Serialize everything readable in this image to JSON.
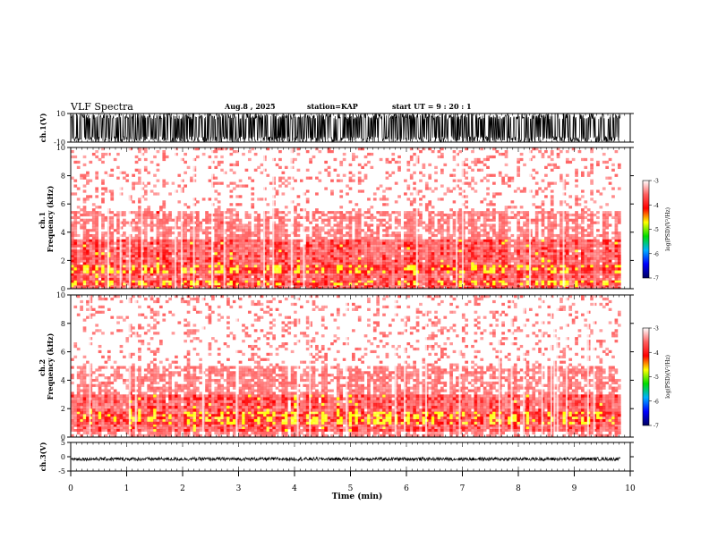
{
  "header": {
    "title": "VLF Spectra",
    "date": "Aug.8 , 2025",
    "station": "station=KAP",
    "start_ut": "start UT = 9 : 20 : 1"
  },
  "colors": {
    "spectrum_palette": [
      "#ffffff",
      "#ff6060",
      "#ff0000",
      "#ffff00",
      "#00dd00",
      "#00b0ff",
      "#0000ff",
      "#000060"
    ],
    "ink": "#000000"
  },
  "chart_data": [
    {
      "type": "line",
      "name": "ch1-waveform",
      "ylabel": "ch.1(V)",
      "ylim": [
        -10,
        10
      ],
      "y_ticks": [
        "10",
        "-10"
      ],
      "series": [
        {
          "name": "ch.1",
          "amplitude_range": [
            -10,
            10
          ],
          "duration_min": 9.83
        }
      ]
    },
    {
      "type": "heatmap",
      "name": "ch1-spectrogram",
      "ylabel": "ch.1\nFrequency (kHz)",
      "ylim": [
        0,
        10
      ],
      "y_ticks": [
        "0",
        "2",
        "4",
        "6",
        "8",
        "10"
      ],
      "bands_khz": [
        {
          "range": [
            0.0,
            0.25
          ],
          "level": "medium"
        },
        {
          "range": [
            0.25,
            0.6
          ],
          "level": "strong"
        },
        {
          "range": [
            0.6,
            1.1
          ],
          "level": "medium"
        },
        {
          "range": [
            1.1,
            1.7
          ],
          "level": "strong"
        },
        {
          "range": [
            1.7,
            2.4
          ],
          "level": "medium"
        },
        {
          "range": [
            2.4,
            3.5
          ],
          "level": "medium"
        },
        {
          "range": [
            3.5,
            5.5
          ],
          "level": "weak"
        },
        {
          "range": [
            5.5,
            10.0
          ],
          "level": "faint"
        }
      ],
      "colorbar": {
        "label": "log(PSD)(V²/Hz)",
        "range": [
          -7,
          -3
        ],
        "ticks": [
          "-3",
          "-4",
          "-5",
          "-6",
          "-7"
        ]
      }
    },
    {
      "type": "heatmap",
      "name": "ch2-spectrogram",
      "ylabel": "ch.2\nFrequency (kHz)",
      "ylim": [
        0,
        10
      ],
      "y_ticks": [
        "0",
        "2",
        "4",
        "6",
        "8",
        "10"
      ],
      "bands_khz": [
        {
          "range": [
            0.0,
            0.4
          ],
          "level": "weak"
        },
        {
          "range": [
            0.4,
            0.9
          ],
          "level": "medium"
        },
        {
          "range": [
            0.9,
            1.8
          ],
          "level": "strong"
        },
        {
          "range": [
            1.8,
            3.0
          ],
          "level": "medium"
        },
        {
          "range": [
            3.0,
            5.0
          ],
          "level": "weak"
        },
        {
          "range": [
            5.0,
            10.0
          ],
          "level": "faint"
        }
      ],
      "colorbar": {
        "label": "log(PSD)(V²/Hz)",
        "range": [
          -7,
          -3
        ],
        "ticks": [
          "-3",
          "-4",
          "-5",
          "-6",
          "-7"
        ]
      }
    },
    {
      "type": "line",
      "name": "ch3-waveform",
      "ylabel": "ch.3(V)",
      "ylim": [
        -5,
        5
      ],
      "y_ticks": [
        "5",
        "0",
        "-5"
      ],
      "series": [
        {
          "name": "ch.3",
          "amplitude_range": [
            -0.6,
            0.6
          ],
          "offset": -0.8,
          "duration_min": 9.83
        }
      ]
    }
  ],
  "x_axis": {
    "label": "Time (min)",
    "range": [
      0,
      10
    ],
    "ticks": [
      "0",
      "1",
      "2",
      "3",
      "4",
      "5",
      "6",
      "7",
      "8",
      "9",
      "10"
    ],
    "data_end": 9.83
  }
}
